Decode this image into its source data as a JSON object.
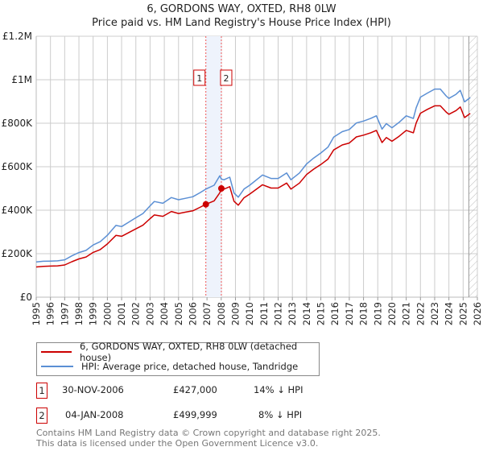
{
  "chart_data": {
    "type": "line",
    "title": "6, GORDONS WAY, OXTED, RH8 0LW",
    "subtitle": "Price paid vs. HM Land Registry's House Price Index (HPI)",
    "xlim": [
      1995,
      2026
    ],
    "ylim": [
      0,
      1200000
    ],
    "x_ticks": [
      "1995",
      "1996",
      "1997",
      "1998",
      "1999",
      "2000",
      "2001",
      "2002",
      "2003",
      "2004",
      "2005",
      "2006",
      "2007",
      "2008",
      "2009",
      "2010",
      "2011",
      "2012",
      "2013",
      "2014",
      "2015",
      "2016",
      "2017",
      "2018",
      "2019",
      "2020",
      "2021",
      "2022",
      "2023",
      "2024",
      "2025",
      "2026"
    ],
    "y_ticks": [
      {
        "value": 0,
        "label": "£0"
      },
      {
        "value": 200000,
        "label": "£200K"
      },
      {
        "value": 400000,
        "label": "£400K"
      },
      {
        "value": 600000,
        "label": "£600K"
      },
      {
        "value": 800000,
        "label": "£800K"
      },
      {
        "value": 1000000,
        "label": "£1M"
      },
      {
        "value": 1200000,
        "label": "£1.2M"
      }
    ],
    "grid": true,
    "x": [
      1995.0,
      1995.5,
      1996.0,
      1996.5,
      1997.0,
      1997.5,
      1998.0,
      1998.5,
      1999.0,
      1999.5,
      2000.0,
      2000.6,
      2001.0,
      2001.5,
      2002.0,
      2002.5,
      2003.0,
      2003.3,
      2003.9,
      2004.5,
      2005.0,
      2005.5,
      2006.0,
      2006.5,
      2006.92,
      2007.5,
      2007.9,
      2008.01,
      2008.2,
      2008.6,
      2008.9,
      2009.2,
      2009.6,
      2010.0,
      2010.9,
      2011.5,
      2012.0,
      2012.6,
      2012.9,
      2013.5,
      2014.0,
      2014.5,
      2015.0,
      2015.5,
      2015.9,
      2016.5,
      2017.0,
      2017.5,
      2018.0,
      2018.5,
      2018.9,
      2019.3,
      2019.6,
      2020.0,
      2020.5,
      2021.0,
      2021.5,
      2021.7,
      2022.0,
      2022.5,
      2023.0,
      2023.4,
      2023.8,
      2024.0,
      2024.5,
      2024.8,
      2025.1,
      2025.5
    ],
    "series": [
      {
        "name": "6, GORDONS WAY, OXTED, RH8 0LW (detached house)",
        "color": "#cc0000",
        "values": [
          139000,
          142000,
          143000,
          144000,
          148000,
          163000,
          176000,
          185000,
          206000,
          219000,
          245000,
          284000,
          280000,
          297000,
          314000,
          331000,
          361000,
          378000,
          372000,
          394000,
          385000,
          391000,
          397000,
          413000,
          427000,
          443000,
          480000,
          499999,
          497000,
          508000,
          441000,
          423000,
          457000,
          474000,
          517000,
          502000,
          502000,
          525000,
          497000,
          525000,
          564000,
          589000,
          610000,
          635000,
          677000,
          700000,
          709000,
          737000,
          745000,
          756000,
          767000,
          711000,
          734000,
          717000,
          740000,
          767000,
          756000,
          801000,
          846000,
          864000,
          880000,
          880000,
          852000,
          841000,
          858000,
          875000,
          826000,
          845000
        ]
      },
      {
        "name": "HPI: Average price, detached house, Tandridge",
        "color": "#5b8fd4",
        "values": [
          162000,
          165000,
          166000,
          167000,
          172000,
          190000,
          205000,
          215000,
          240000,
          255000,
          285000,
          330000,
          325000,
          345000,
          365000,
          385000,
          420000,
          440000,
          432000,
          458000,
          448000,
          455000,
          462000,
          480000,
          497000,
          515000,
          558000,
          543000,
          540000,
          552000,
          479000,
          460000,
          497000,
          515000,
          562000,
          546000,
          546000,
          571000,
          540000,
          571000,
          613000,
          640000,
          663000,
          690000,
          736000,
          761000,
          771000,
          801000,
          810000,
          822000,
          834000,
          773000,
          798000,
          779000,
          804000,
          834000,
          822000,
          871000,
          920000,
          939000,
          957000,
          957000,
          926000,
          914000,
          933000,
          951000,
          898000,
          918000
        ]
      }
    ],
    "sales": [
      {
        "label": "1",
        "date": "30-NOV-2006",
        "x": 2006.92,
        "price": 427000,
        "price_text": "£427,000",
        "hpi_text": "14% ↓ HPI"
      },
      {
        "label": "2",
        "date": "04-JAN-2008",
        "x": 2008.01,
        "price": 499999,
        "price_text": "£499,999",
        "hpi_text": "8% ↓ HPI"
      }
    ],
    "forecast_start": 2025.4
  },
  "footer": {
    "line1": "Contains HM Land Registry data © Crown copyright and database right 2025.",
    "line2": "This data is licensed under the Open Government Licence v3.0."
  }
}
